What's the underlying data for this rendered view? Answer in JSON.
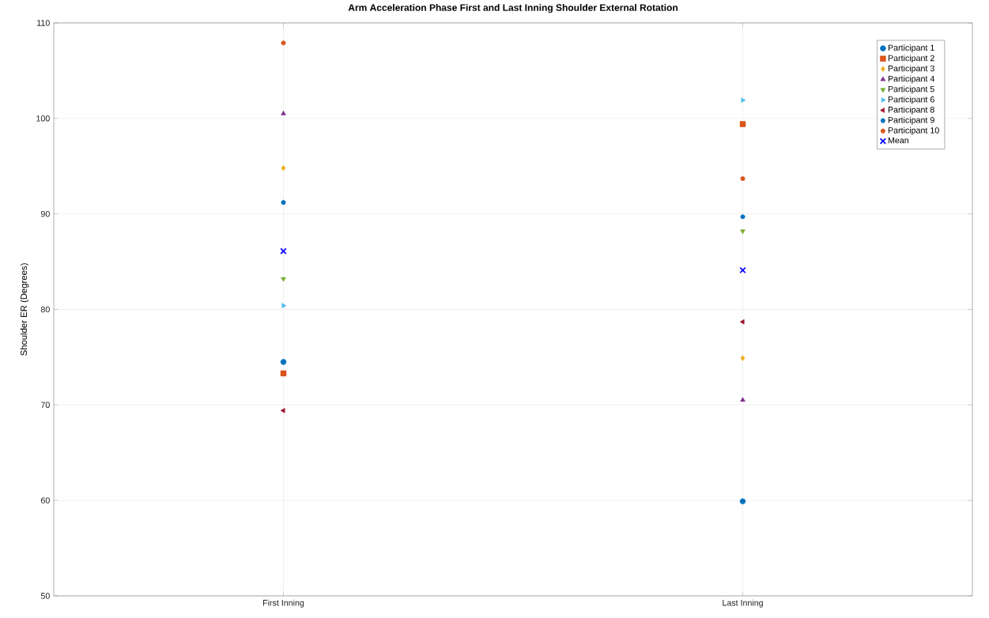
{
  "chart_data": {
    "type": "scatter",
    "title": "Arm Acceleration Phase First and Last Inning Shoulder External Rotation",
    "ylabel": "Shoulder ER (Degrees)",
    "categories": [
      "First Inning",
      "Last Inning"
    ],
    "series": [
      {
        "name": "Participant 1",
        "color": "#0072bd",
        "marker": "circle",
        "values": [
          74.5,
          59.9
        ]
      },
      {
        "name": "Participant 2",
        "color": "#d95319",
        "marker": "square",
        "values": [
          73.3,
          99.4
        ]
      },
      {
        "name": "Participant 3",
        "color": "#edb120",
        "marker": "diamond",
        "values": [
          94.8,
          74.9
        ]
      },
      {
        "name": "Participant 4",
        "color": "#7e2f8e",
        "marker": "triangle",
        "values": [
          100.5,
          70.5
        ]
      },
      {
        "name": "Participant 5",
        "color": "#77ac30",
        "marker": "triangle-down",
        "values": [
          83.2,
          88.2
        ]
      },
      {
        "name": "Participant 6",
        "color": "#4dbeee",
        "marker": "triangle-right",
        "values": [
          80.4,
          101.9
        ]
      },
      {
        "name": "Participant 8",
        "color": "#a2142f",
        "marker": "triangle-left",
        "values": [
          69.4,
          78.7
        ]
      },
      {
        "name": "Participant 9",
        "color": "#0072bd",
        "marker": "star",
        "values": [
          91.2,
          89.7
        ]
      },
      {
        "name": "Participant 10",
        "color": "#d95319",
        "marker": "star",
        "values": [
          107.9,
          93.7
        ]
      },
      {
        "name": "Mean",
        "color": "#0000ff",
        "marker": "cross",
        "values": [
          86.1,
          84.1
        ]
      }
    ],
    "ylim": [
      50,
      110
    ],
    "yticks": [
      50,
      60,
      70,
      80,
      90,
      100,
      110
    ],
    "grid": true,
    "legend": "top right"
  }
}
